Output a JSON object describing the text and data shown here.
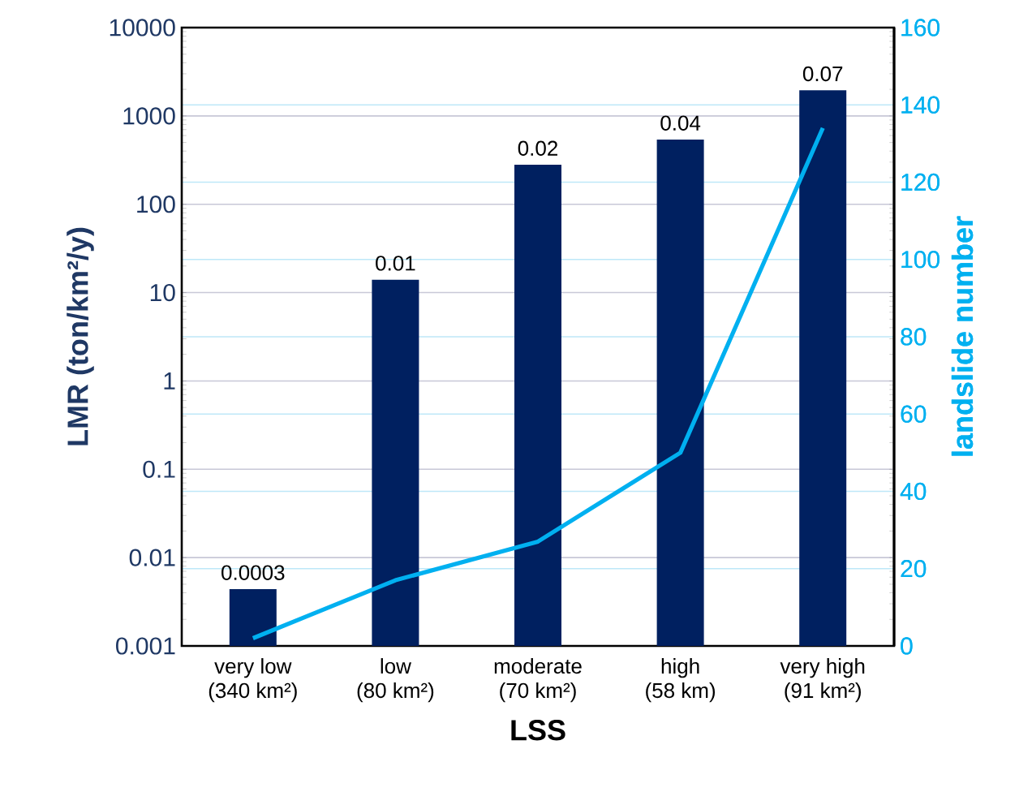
{
  "chart_data": {
    "type": "bar",
    "xlabel": "LSS",
    "ylabel": "LMR (ton/km²/y)",
    "y2label": "landslide number",
    "categories": [
      "very low\n(340 km²)",
      "low\n(80 km²)",
      "moderate\n(70 km²)",
      "high\n(58 km)",
      "very high\n(91 km²)"
    ],
    "series": [
      {
        "color": "#002060",
        "values": [
          0.0044,
          14,
          280,
          540,
          1950
        ]
      },
      {
        "type": "line",
        "axis": "y2",
        "color": "#00b0f0",
        "values": [
          2,
          17,
          27,
          50,
          134
        ]
      }
    ],
    "annotations": [
      {
        "text": "0.0003",
        "x": "very low\n(340 km²)",
        "y": 0.0044
      },
      {
        "text": "0.01",
        "x": "low\n(80 km²)",
        "y": 14
      },
      {
        "text": "0.02",
        "x": "moderate\n(70 km²)",
        "y": 280
      },
      {
        "text": "0.04",
        "x": "high\n(58 km)",
        "y": 540
      },
      {
        "text": "0.07",
        "x": "very high\n(91 km²)",
        "y": 1950
      }
    ],
    "log": "y",
    "ylim": [
      0.001,
      10000
    ],
    "yticks": [
      0.001,
      0.01,
      0.1,
      1,
      10,
      100,
      1000,
      10000
    ],
    "y2lim": [
      0,
      160
    ],
    "y2ticks": [
      0,
      20,
      40,
      60,
      80,
      100,
      120,
      140,
      160
    ],
    "grid": true
  }
}
